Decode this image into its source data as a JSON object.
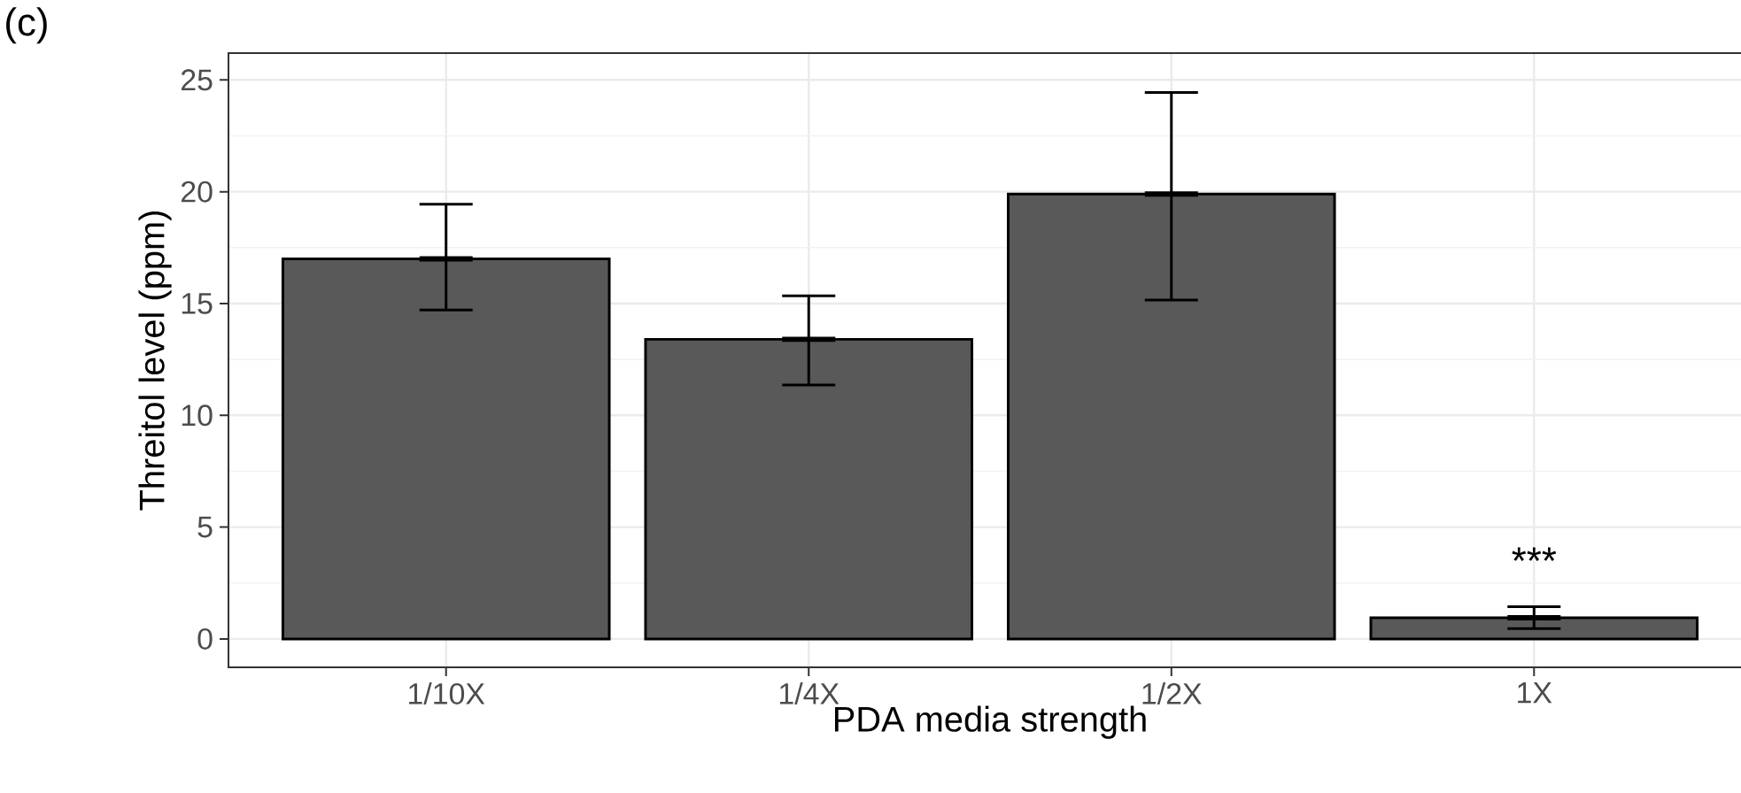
{
  "chart_data": {
    "type": "bar",
    "title": "(c)",
    "xlabel": "PDA media strength",
    "ylabel": "Threitol level (ppm)",
    "categories": [
      "1/10X",
      "1/4X",
      "1/2X",
      "1X"
    ],
    "values": [
      17.0,
      13.4,
      19.9,
      0.95
    ],
    "errors": [
      [
        14.65,
        19.5
      ],
      [
        11.3,
        15.4
      ],
      [
        15.1,
        24.5
      ],
      [
        0.4,
        1.5
      ]
    ],
    "color": "#595959",
    "ylim": [
      -1.27,
      26.2
    ],
    "yticks": [
      0,
      5,
      10,
      15,
      20,
      25
    ],
    "grid": true,
    "annotations": [
      "***"
    ]
  }
}
